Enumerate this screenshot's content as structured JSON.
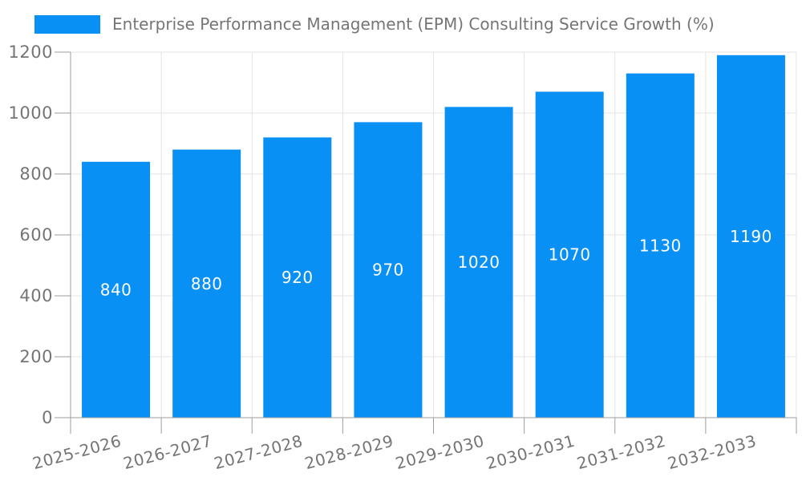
{
  "chart_data": {
    "type": "bar",
    "title": "Enterprise Performance Management (EPM) Consulting Service Growth (%)",
    "categories": [
      "2025-2026",
      "2026-2027",
      "2027-2028",
      "2028-2029",
      "2029-2030",
      "2030-2031",
      "2031-2032",
      "2032-2033"
    ],
    "series": [
      {
        "name": "Enterprise Performance Management (EPM) Consulting Service Growth (%)",
        "values": [
          840,
          880,
          920,
          970,
          1020,
          1070,
          1130,
          1190
        ]
      }
    ],
    "xlabel": "",
    "ylabel": "",
    "ylim": [
      0,
      1200
    ],
    "yticks": [
      0,
      200,
      400,
      600,
      800,
      1000,
      1200
    ],
    "grid": true,
    "legend_position": "top-left",
    "bar_labels_visible": true,
    "x_label_rotation_deg": -15
  },
  "colors": {
    "bar": "#0990f4",
    "grid": "#e3e3e3",
    "axis": "#9e9e9e",
    "tick_label": "#757575",
    "legend_text": "#757575",
    "bar_label": "#ffffff",
    "background": "#ffffff"
  }
}
